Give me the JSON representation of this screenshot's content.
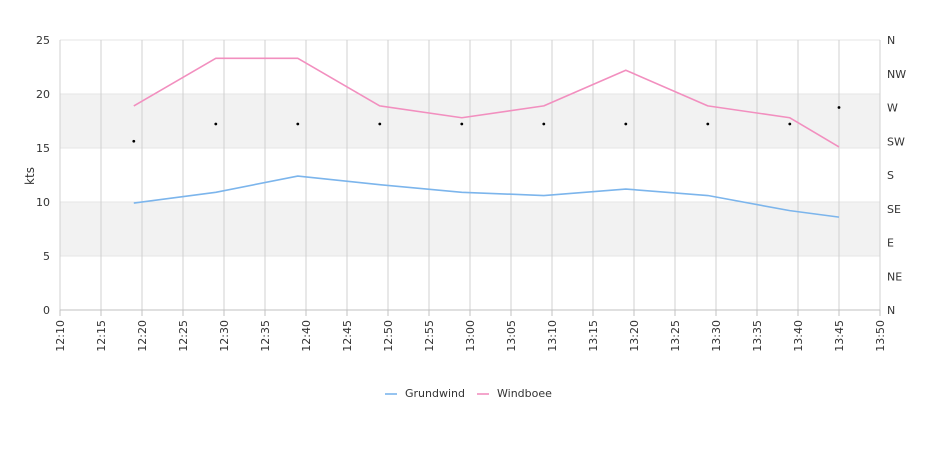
{
  "chart_data": {
    "type": "line",
    "ylabel": "kts",
    "ylim": [
      0,
      25
    ],
    "y_ticks": [
      "0",
      "5",
      "10",
      "15",
      "20",
      "25"
    ],
    "x_ticks": [
      "12:10",
      "12:15",
      "12:20",
      "12:25",
      "12:30",
      "12:35",
      "12:40",
      "12:45",
      "12:50",
      "12:55",
      "13:00",
      "13:05",
      "13:10",
      "13:15",
      "13:20",
      "13:25",
      "13:30",
      "13:35",
      "13:40",
      "13:45",
      "13:50"
    ],
    "xlim": [
      "12:10",
      "13:50"
    ],
    "y2_ticks": [
      "N",
      "NE",
      "E",
      "SE",
      "S",
      "SW",
      "W",
      "NW",
      "N"
    ],
    "y2lim": [
      0,
      360
    ],
    "x": [
      "12:19",
      "12:29",
      "12:39",
      "12:49",
      "12:59",
      "13:09",
      "13:19",
      "13:29",
      "13:39",
      "13:45"
    ],
    "series": [
      {
        "name": "Grundwind",
        "color": "#7cb5ec",
        "values": [
          9.9,
          10.9,
          12.4,
          11.6,
          10.9,
          10.6,
          11.2,
          10.6,
          9.2,
          8.6
        ]
      },
      {
        "name": "Windboee",
        "color": "#f28fbf",
        "values": [
          18.9,
          23.3,
          23.3,
          18.9,
          17.8,
          18.9,
          22.2,
          18.9,
          17.8,
          15.1
        ]
      }
    ],
    "direction_series": {
      "color": "#000000",
      "values": [
        225,
        248,
        248,
        248,
        248,
        248,
        248,
        248,
        248,
        270
      ]
    },
    "bands": [
      [
        5,
        10
      ],
      [
        15,
        20
      ]
    ],
    "band_color": "#f2f2f2",
    "grid": true,
    "legend_position": "bottom-center"
  }
}
